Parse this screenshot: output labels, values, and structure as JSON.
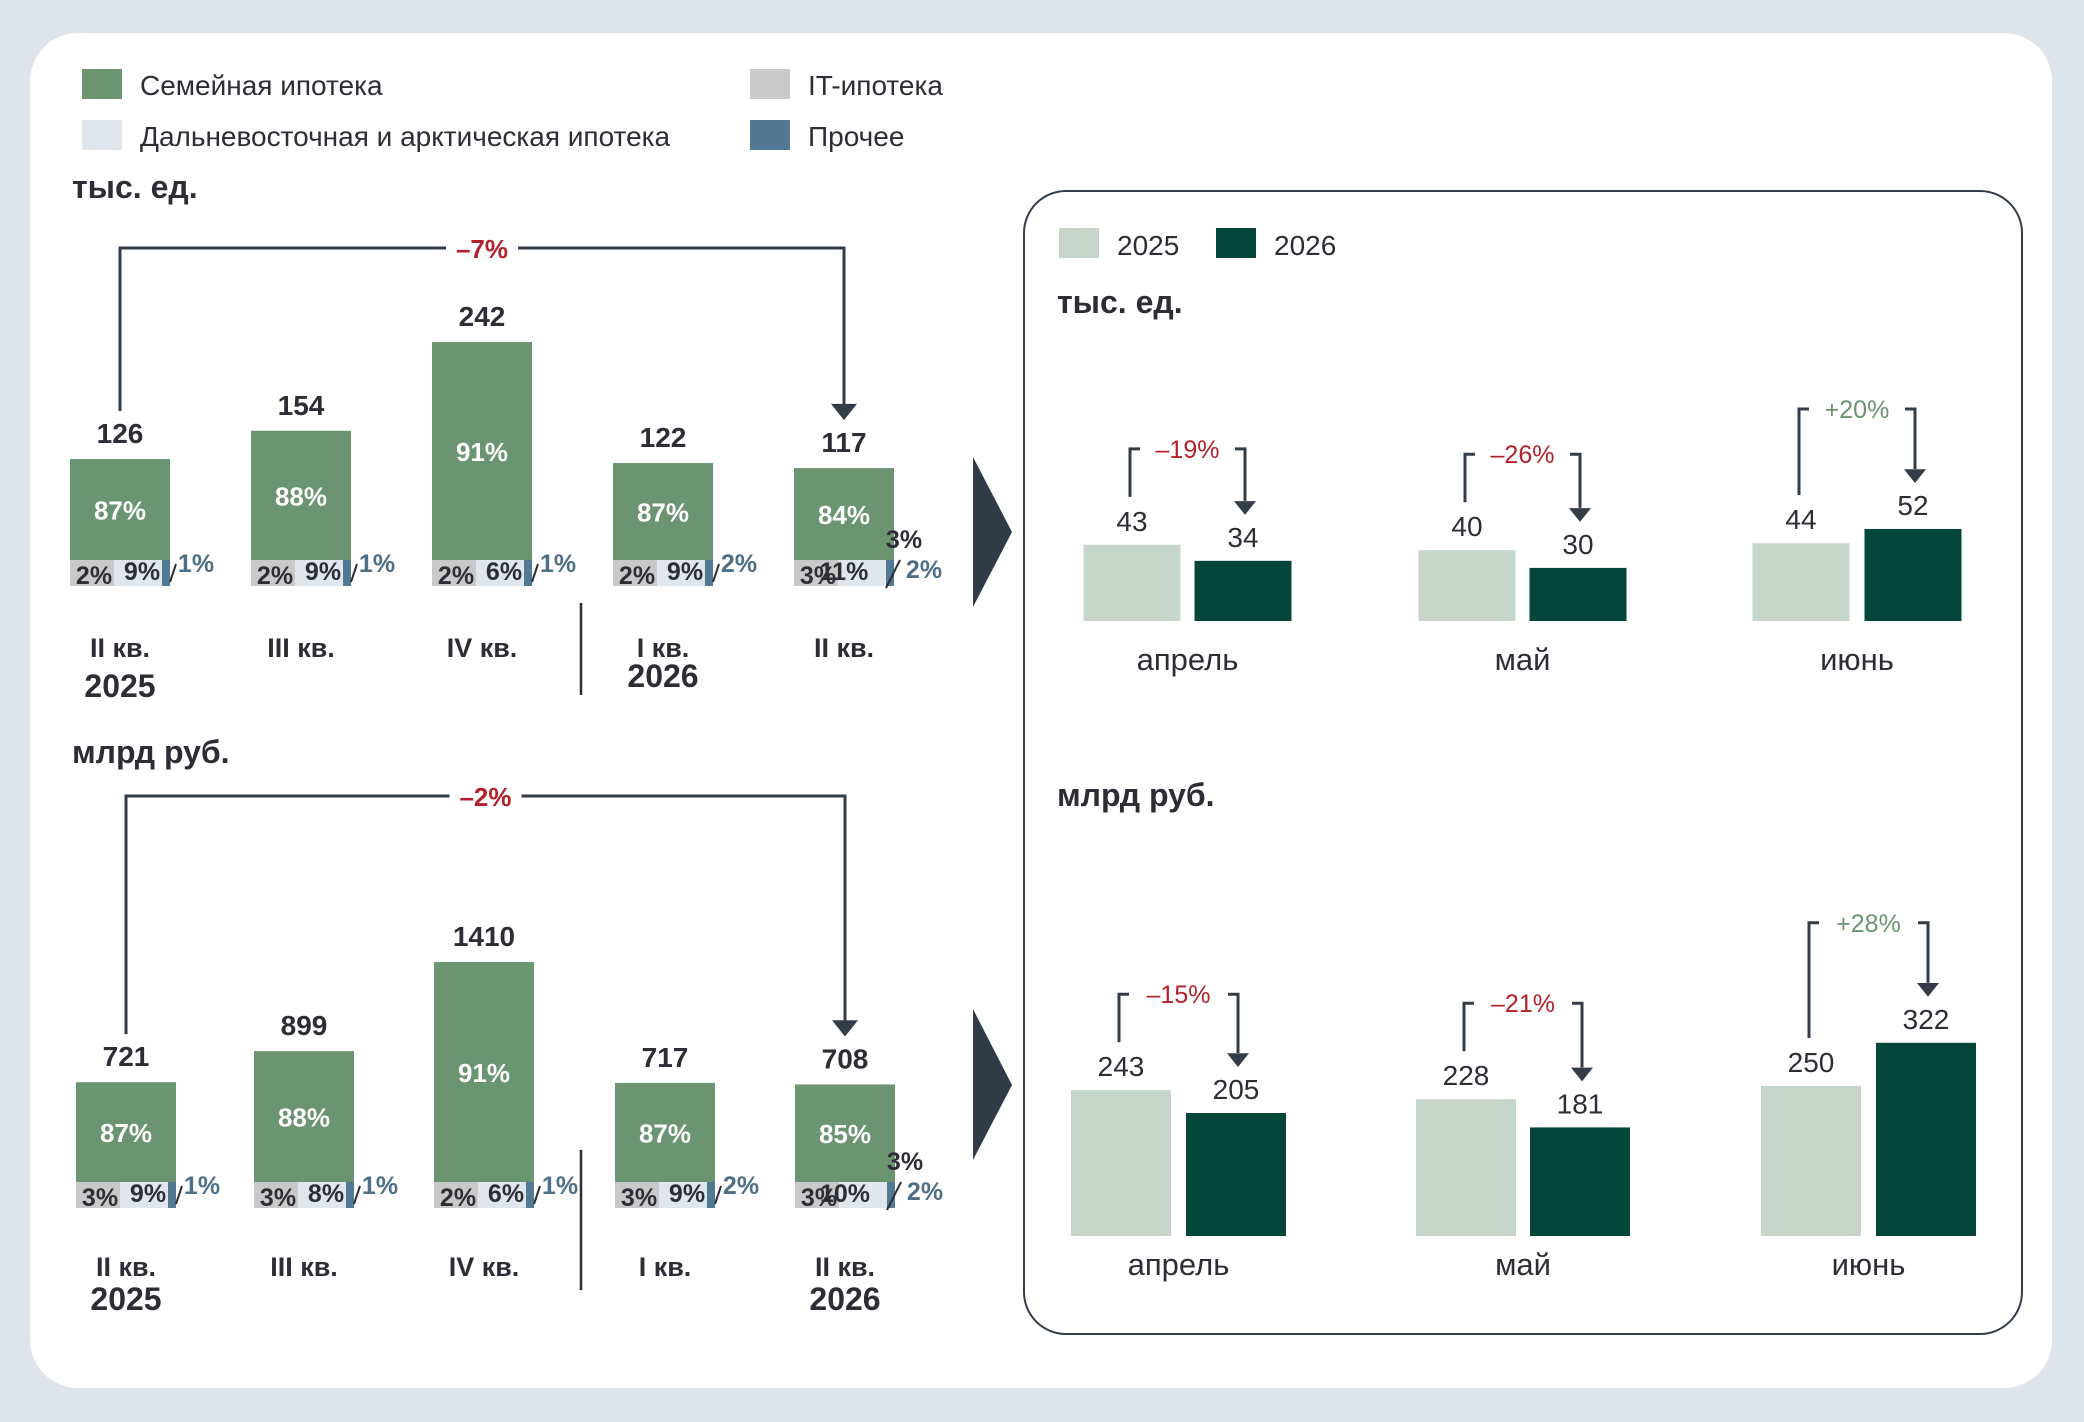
{
  "colors": {
    "background": "#dde4ea",
    "panel": "#ffffff",
    "family": "#6b9470",
    "it": "#c9c9c9",
    "far_east": "#dfe6ec",
    "other": "#527993",
    "year2025": "#c7d6ca",
    "year2026": "#05463a",
    "negative": "#b3202a",
    "positive": "#6b9470",
    "text": "#2d2d35",
    "muted_blue": "#4f6f86",
    "arrow": "#333d48"
  },
  "legend": {
    "items": [
      {
        "label": "Семейная ипотека",
        "color_key": "family"
      },
      {
        "label": "IT-ипотека",
        "color_key": "it"
      },
      {
        "label": "Дальневосточная и арктическая ипотека",
        "color_key": "far_east"
      },
      {
        "label": "Прочее",
        "color_key": "other"
      }
    ]
  },
  "chart_data": [
    {
      "type": "bar",
      "unit": "тыс. ед.",
      "categories": [
        {
          "label": "II кв.",
          "year": "2025"
        },
        {
          "label": "III кв.",
          "year": ""
        },
        {
          "label": "IV кв.",
          "year": ""
        },
        {
          "label": "I кв.",
          "year": "2026"
        },
        {
          "label": "II кв.",
          "year": ""
        }
      ],
      "totals": [
        126,
        154,
        242,
        122,
        117
      ],
      "series": [
        {
          "name": "Семейная ипотека",
          "shares": [
            "87%",
            "88%",
            "91%",
            "87%",
            "84%"
          ]
        },
        {
          "name": "IT-ипотека",
          "shares": [
            "2%",
            "2%",
            "2%",
            "2%",
            "3%"
          ]
        },
        {
          "name": "Дальневосточная и арктическая ипотека",
          "shares": [
            "9%",
            "9%",
            "6%",
            "9%",
            "11%"
          ]
        },
        {
          "name": "Прочее",
          "shares": [
            "1%",
            "1%",
            "1%",
            "2%",
            "2%"
          ]
        }
      ],
      "change": {
        "from": 0,
        "to": 4,
        "label": "–7%"
      }
    },
    {
      "type": "bar",
      "unit": "млрд руб.",
      "categories": [
        {
          "label": "II кв.",
          "year": "2025"
        },
        {
          "label": "III кв.",
          "year": ""
        },
        {
          "label": "IV кв.",
          "year": ""
        },
        {
          "label": "I кв.",
          "year": ""
        },
        {
          "label": "II кв.",
          "year": "2026"
        }
      ],
      "totals": [
        721,
        899,
        1410,
        717,
        708
      ],
      "series": [
        {
          "name": "Семейная ипотека",
          "shares": [
            "87%",
            "88%",
            "91%",
            "87%",
            "85%"
          ]
        },
        {
          "name": "IT-ипотека",
          "shares": [
            "3%",
            "3%",
            "2%",
            "3%",
            "3%"
          ]
        },
        {
          "name": "Дальневосточная и арктическая ипотека",
          "shares": [
            "9%",
            "8%",
            "6%",
            "9%",
            "10%"
          ]
        },
        {
          "name": "Прочее",
          "shares": [
            "1%",
            "1%",
            "1%",
            "2%",
            "2%"
          ]
        }
      ],
      "change": {
        "from": 0,
        "to": 4,
        "label": "–2%"
      }
    },
    {
      "type": "bar",
      "unit": "тыс. ед.",
      "categories": [
        "апрель",
        "май",
        "июнь"
      ],
      "series": [
        {
          "name": "2025",
          "values": [
            43,
            40,
            44
          ]
        },
        {
          "name": "2026",
          "values": [
            34,
            30,
            52
          ]
        }
      ],
      "changes": [
        "–19%",
        "–26%",
        "+20%"
      ]
    },
    {
      "type": "bar",
      "unit": "млрд руб.",
      "categories": [
        "апрель",
        "май",
        "июнь"
      ],
      "series": [
        {
          "name": "2025",
          "values": [
            243,
            228,
            250
          ]
        },
        {
          "name": "2026",
          "values": [
            205,
            181,
            322
          ]
        }
      ],
      "changes": [
        "–15%",
        "–21%",
        "+28%"
      ]
    }
  ],
  "monthly_legend": [
    {
      "label": "2025",
      "color_key": "year2025"
    },
    {
      "label": "2026",
      "color_key": "year2026"
    }
  ]
}
